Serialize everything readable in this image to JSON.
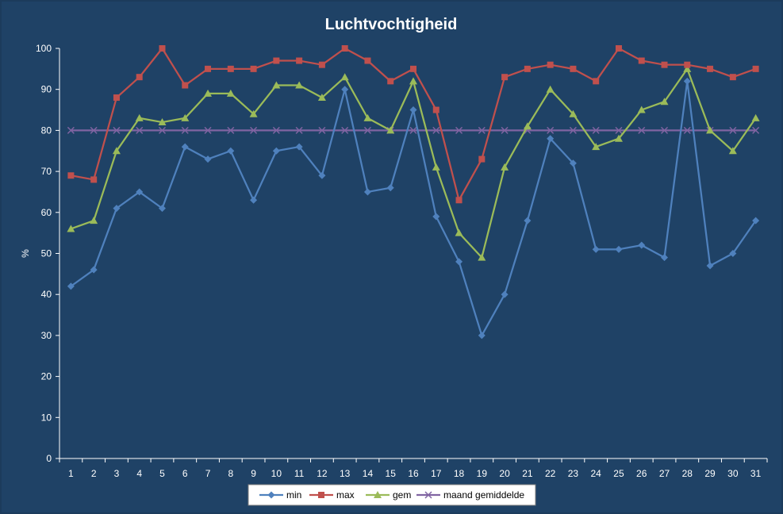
{
  "chart_data": {
    "type": "line",
    "title": "Luchtvochtigheid",
    "xlabel": "",
    "ylabel": "%",
    "ylim": [
      0,
      100
    ],
    "yticks": [
      0,
      10,
      20,
      30,
      40,
      50,
      60,
      70,
      80,
      90,
      100
    ],
    "categories": [
      "1",
      "2",
      "3",
      "4",
      "5",
      "6",
      "7",
      "8",
      "9",
      "10",
      "11",
      "12",
      "13",
      "14",
      "15",
      "16",
      "17",
      "18",
      "19",
      "20",
      "21",
      "22",
      "23",
      "24",
      "25",
      "26",
      "27",
      "28",
      "29",
      "30",
      "31"
    ],
    "grid": false,
    "legend_position": "bottom",
    "series": [
      {
        "name": "min",
        "color": "#4f81bd",
        "marker": "diamond",
        "values": [
          42,
          46,
          61,
          65,
          61,
          76,
          73,
          75,
          63,
          75,
          76,
          69,
          90,
          65,
          66,
          85,
          59,
          48,
          30,
          40,
          58,
          78,
          72,
          51,
          51,
          52,
          49,
          92,
          47,
          50,
          58
        ]
      },
      {
        "name": "max",
        "color": "#c0504d",
        "marker": "square",
        "values": [
          69,
          68,
          88,
          93,
          100,
          91,
          95,
          95,
          95,
          97,
          97,
          96,
          100,
          97,
          92,
          95,
          85,
          63,
          73,
          93,
          95,
          96,
          95,
          92,
          100,
          97,
          96,
          96,
          95,
          93,
          95
        ]
      },
      {
        "name": "gem",
        "color": "#9bbb59",
        "marker": "triangle",
        "values": [
          56,
          58,
          75,
          83,
          82,
          83,
          89,
          89,
          84,
          91,
          91,
          88,
          93,
          83,
          80,
          92,
          71,
          55,
          49,
          71,
          81,
          90,
          84,
          76,
          78,
          85,
          87,
          95,
          80,
          75,
          83
        ]
      },
      {
        "name": "maand gemiddelde",
        "color": "#8064a2",
        "marker": "x",
        "values": [
          80,
          80,
          80,
          80,
          80,
          80,
          80,
          80,
          80,
          80,
          80,
          80,
          80,
          80,
          80,
          80,
          80,
          80,
          80,
          80,
          80,
          80,
          80,
          80,
          80,
          80,
          80,
          80,
          80,
          80,
          80
        ]
      }
    ]
  }
}
